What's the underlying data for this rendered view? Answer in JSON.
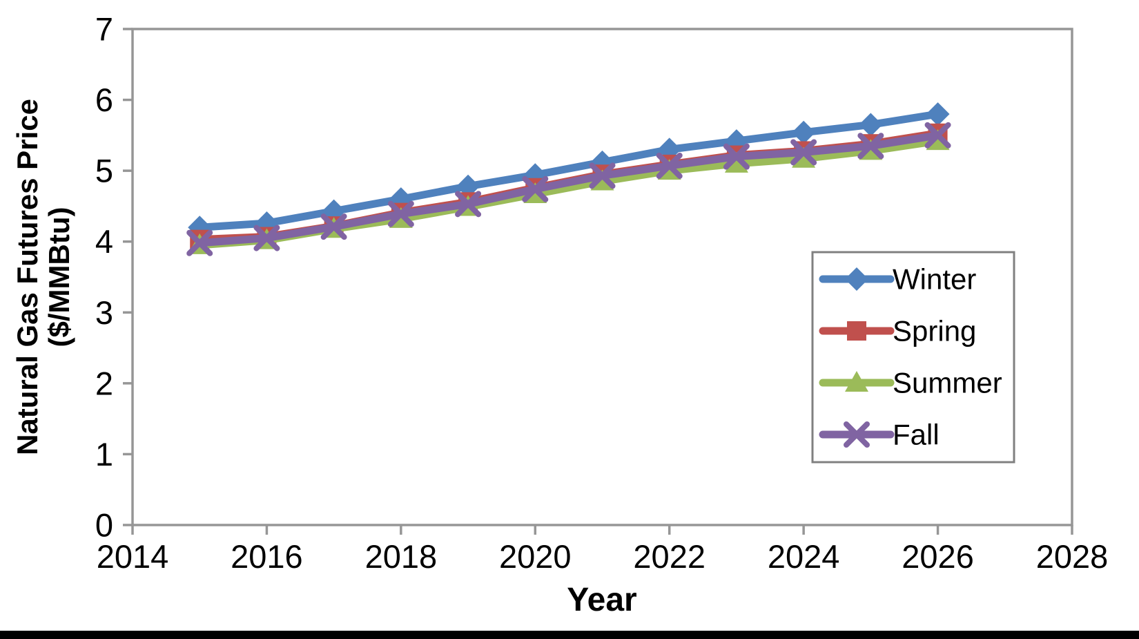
{
  "page": {
    "background": "#ffffff",
    "bottom_bar_color": "#000000"
  },
  "chart_data": {
    "type": "line",
    "title": "",
    "xlabel": "Year",
    "ylabel": "Natural Gas Futures Price ($/MMBtu)",
    "ylabel_line1": "Natural Gas Futures Price",
    "ylabel_line2": "($/MMBtu)",
    "xlim": [
      2014,
      2028
    ],
    "ylim": [
      0,
      7
    ],
    "x_ticks": [
      2014,
      2016,
      2018,
      2020,
      2022,
      2024,
      2026,
      2028
    ],
    "y_ticks": [
      0,
      1,
      2,
      3,
      4,
      5,
      6,
      7
    ],
    "grid": false,
    "legend_position": "inside-right",
    "axis_color": "#969696",
    "legend_border_color": "#808080",
    "text_color": "#000000",
    "x": [
      2015,
      2016,
      2017,
      2018,
      2019,
      2020,
      2021,
      2022,
      2023,
      2024,
      2025,
      2026
    ],
    "series": [
      {
        "name": "Winter",
        "color": "#4F81BD",
        "marker": "diamond",
        "values": [
          4.2,
          4.26,
          4.43,
          4.6,
          4.78,
          4.94,
          5.12,
          5.3,
          5.42,
          5.54,
          5.65,
          5.8
        ]
      },
      {
        "name": "Spring",
        "color": "#C0504D",
        "marker": "square",
        "values": [
          4.03,
          4.07,
          4.22,
          4.41,
          4.56,
          4.76,
          4.95,
          5.09,
          5.22,
          5.28,
          5.38,
          5.53
        ]
      },
      {
        "name": "Summer",
        "color": "#9BBB59",
        "marker": "triangle",
        "values": [
          3.95,
          4.02,
          4.18,
          4.32,
          4.49,
          4.67,
          4.85,
          5.0,
          5.1,
          5.17,
          5.28,
          5.42
        ]
      },
      {
        "name": "Fall",
        "color": "#8064A2",
        "marker": "x",
        "values": [
          3.98,
          4.05,
          4.21,
          4.39,
          4.53,
          4.74,
          4.93,
          5.07,
          5.2,
          5.26,
          5.35,
          5.5
        ]
      }
    ]
  }
}
